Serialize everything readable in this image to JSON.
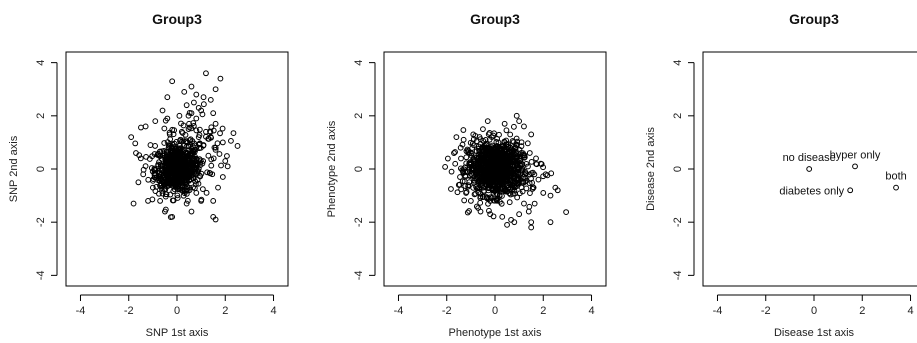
{
  "chart_data": [
    {
      "type": "scatter",
      "title": "Group3",
      "xlabel": "SNP 1st axis",
      "ylabel": "SNP 2nd axis",
      "xlim": [
        -4.6,
        4.6
      ],
      "ylim": [
        -4.4,
        4.4
      ],
      "xticks": [
        -4,
        -2,
        0,
        2,
        4
      ],
      "yticks": [
        -4,
        -2,
        0,
        2,
        4
      ],
      "point_style": "open-circle",
      "dense_core": {
        "center": [
          0,
          0
        ],
        "spread": [
          0.45,
          0.45
        ],
        "n": 650
      },
      "points": [
        [
          -1.9,
          1.2
        ],
        [
          -1.8,
          -1.3
        ],
        [
          -1.5,
          0.4
        ],
        [
          -1.3,
          1.6
        ],
        [
          -1.2,
          -1.2
        ],
        [
          -0.9,
          1.8
        ],
        [
          -0.6,
          2.2
        ],
        [
          -0.4,
          2.7
        ],
        [
          -0.2,
          3.3
        ],
        [
          0.3,
          2.9
        ],
        [
          0.6,
          3.1
        ],
        [
          0.6,
          2.1
        ],
        [
          0.7,
          2.5
        ],
        [
          0.8,
          1.9
        ],
        [
          0.9,
          2.3
        ],
        [
          1.0,
          2.2
        ],
        [
          1.1,
          2.7
        ],
        [
          1.2,
          3.6
        ],
        [
          1.4,
          2.6
        ],
        [
          1.5,
          2.1
        ],
        [
          1.6,
          3.0
        ],
        [
          1.8,
          3.4
        ],
        [
          1.2,
          1.4
        ],
        [
          1.4,
          1.2
        ],
        [
          1.6,
          1.7
        ],
        [
          1.9,
          1.0
        ],
        [
          2.0,
          0.3
        ],
        [
          2.1,
          0.1
        ],
        [
          1.7,
          -0.7
        ],
        [
          1.5,
          -1.2
        ],
        [
          1.5,
          -1.8
        ],
        [
          1.6,
          -1.9
        ],
        [
          1.0,
          -1.2
        ],
        [
          0.8,
          -0.9
        ],
        [
          0.4,
          -1.3
        ],
        [
          -0.2,
          -1.8
        ],
        [
          -0.5,
          -1.6
        ],
        [
          -1.0,
          -0.7
        ],
        [
          -1.4,
          -0.2
        ],
        [
          -1.7,
          0.6
        ],
        [
          -1.1,
          0.9
        ],
        [
          0.2,
          1.4
        ],
        [
          0.5,
          1.7
        ],
        [
          -0.3,
          1.3
        ],
        [
          1.1,
          0.9
        ],
        [
          1.3,
          0.5
        ],
        [
          0.9,
          1.2
        ],
        [
          -0.7,
          -1.2
        ],
        [
          0.6,
          -1.6
        ],
        [
          1.9,
          -0.3
        ],
        [
          -1.6,
          -0.5
        ],
        [
          0.1,
          2.0
        ],
        [
          -0.4,
          1.9
        ],
        [
          0.4,
          2.4
        ],
        [
          0.8,
          2.8
        ]
      ],
      "extra_scatter": {
        "center": [
          0.6,
          0.8
        ],
        "spread": [
          0.8,
          0.7
        ],
        "n": 110
      }
    },
    {
      "type": "scatter",
      "title": "Group3",
      "xlabel": "Phenotype 1st axis",
      "ylabel": "Phenotype 2nd axis",
      "xlim": [
        -4.6,
        4.6
      ],
      "ylim": [
        -4.4,
        4.4
      ],
      "xticks": [
        -4,
        -2,
        0,
        2,
        4
      ],
      "yticks": [
        -4,
        -2,
        0,
        2,
        4
      ],
      "point_style": "open-circle",
      "dense_core": {
        "center": [
          0,
          0
        ],
        "spread": [
          0.55,
          0.5
        ],
        "n": 900
      },
      "points": [
        [
          -1.8,
          -0.1
        ],
        [
          -1.7,
          0.6
        ],
        [
          -1.6,
          1.2
        ],
        [
          -1.3,
          1.1
        ],
        [
          -1.2,
          -0.9
        ],
        [
          -1.0,
          -1.2
        ],
        [
          -0.6,
          -1.6
        ],
        [
          -0.2,
          -1.7
        ],
        [
          0.3,
          -1.8
        ],
        [
          0.5,
          -2.1
        ],
        [
          1.0,
          -1.7
        ],
        [
          1.2,
          -1.3
        ],
        [
          1.4,
          -1.6
        ],
        [
          1.5,
          -2.0
        ],
        [
          1.5,
          -2.2
        ],
        [
          1.6,
          -0.7
        ],
        [
          1.8,
          -0.4
        ],
        [
          2.0,
          -0.9
        ],
        [
          2.1,
          -0.2
        ],
        [
          2.3,
          -1.0
        ],
        [
          2.3,
          -2.0
        ],
        [
          2.5,
          -0.7
        ],
        [
          2.6,
          -0.8
        ],
        [
          1.2,
          1.6
        ],
        [
          1.5,
          1.3
        ],
        [
          1.0,
          1.8
        ],
        [
          0.9,
          2.0
        ],
        [
          0.4,
          1.7
        ],
        [
          -0.5,
          1.5
        ],
        [
          -0.9,
          1.3
        ],
        [
          1.7,
          0.4
        ],
        [
          1.9,
          0.2
        ],
        [
          -1.5,
          -0.6
        ],
        [
          0.8,
          -2.0
        ],
        [
          -0.3,
          1.8
        ]
      ],
      "extra_scatter": {
        "center": [
          0.4,
          0
        ],
        "spread": [
          0.9,
          0.75
        ],
        "n": 140
      }
    },
    {
      "type": "scatter",
      "title": "Group3",
      "xlabel": "Disease 1st axis",
      "ylabel": "Disease 2nd axis",
      "xlim": [
        -4.6,
        4.6
      ],
      "ylim": [
        -4.4,
        4.4
      ],
      "xticks": [
        -4,
        -2,
        0,
        2,
        4
      ],
      "yticks": [
        -4,
        -2,
        0,
        2,
        4
      ],
      "point_style": "open-circle",
      "points": [
        [
          -0.2,
          0.0
        ],
        [
          1.7,
          0.1
        ],
        [
          1.5,
          -0.8
        ],
        [
          3.4,
          -0.7
        ]
      ],
      "point_labels": [
        {
          "text": "no disease",
          "x": -0.2,
          "y": 0.0,
          "anchor": "above"
        },
        {
          "text": "hyper only",
          "x": 1.7,
          "y": 0.1,
          "anchor": "above"
        },
        {
          "text": "diabetes only",
          "x": 1.5,
          "y": -0.8,
          "anchor": "left"
        },
        {
          "text": "both",
          "x": 3.4,
          "y": -0.7,
          "anchor": "above"
        }
      ]
    }
  ]
}
